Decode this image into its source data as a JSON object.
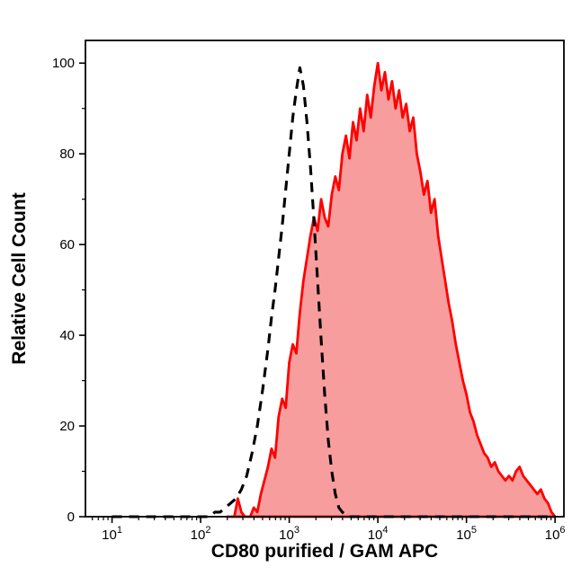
{
  "chart_data": {
    "type": "area",
    "title": "",
    "xlabel": "CD80 purified / GAM APC",
    "ylabel": "Relative Cell Count",
    "x_scale": "log10",
    "xlim_log": [
      0.7,
      6.1
    ],
    "ylim": [
      0,
      105
    ],
    "x_ticks_exponents": [
      1,
      2,
      3,
      4,
      5,
      6
    ],
    "x_tick_base": "10",
    "y_ticks": [
      0,
      20,
      40,
      60,
      80,
      100
    ],
    "y_minor_ticks": [
      10,
      30,
      50,
      70,
      90
    ],
    "grid": false,
    "legend": "none",
    "colors": {
      "frame": "#000000",
      "dashed_curve": "#000000",
      "red_stroke": "#fe0000",
      "red_fill": "#f89d9d",
      "background": "#ffffff"
    },
    "series": [
      {
        "name": "red-filled-sample",
        "style": "filled-solid",
        "stroke": "#fe0000",
        "fill": "#f89d9d",
        "points_log10x_y": [
          [
            2.3,
            0
          ],
          [
            2.38,
            0
          ],
          [
            2.42,
            4
          ],
          [
            2.46,
            1
          ],
          [
            2.5,
            0
          ],
          [
            2.56,
            0
          ],
          [
            2.6,
            2
          ],
          [
            2.64,
            1
          ],
          [
            2.68,
            5
          ],
          [
            2.72,
            8
          ],
          [
            2.76,
            11
          ],
          [
            2.8,
            15
          ],
          [
            2.84,
            13
          ],
          [
            2.88,
            22
          ],
          [
            2.92,
            26
          ],
          [
            2.96,
            24
          ],
          [
            3.0,
            34
          ],
          [
            3.04,
            38
          ],
          [
            3.08,
            36
          ],
          [
            3.12,
            45
          ],
          [
            3.16,
            52
          ],
          [
            3.2,
            57
          ],
          [
            3.24,
            62
          ],
          [
            3.28,
            66
          ],
          [
            3.32,
            63
          ],
          [
            3.36,
            70
          ],
          [
            3.4,
            66
          ],
          [
            3.44,
            64
          ],
          [
            3.48,
            71
          ],
          [
            3.52,
            75
          ],
          [
            3.56,
            72
          ],
          [
            3.6,
            80
          ],
          [
            3.64,
            84
          ],
          [
            3.68,
            79
          ],
          [
            3.72,
            87
          ],
          [
            3.76,
            83
          ],
          [
            3.8,
            90
          ],
          [
            3.84,
            85
          ],
          [
            3.88,
            93
          ],
          [
            3.92,
            88
          ],
          [
            3.96,
            95
          ],
          [
            4.0,
            100
          ],
          [
            4.04,
            94
          ],
          [
            4.08,
            98
          ],
          [
            4.12,
            92
          ],
          [
            4.16,
            96
          ],
          [
            4.2,
            90
          ],
          [
            4.24,
            94
          ],
          [
            4.28,
            88
          ],
          [
            4.32,
            91
          ],
          [
            4.36,
            85
          ],
          [
            4.4,
            88
          ],
          [
            4.44,
            80
          ],
          [
            4.48,
            76
          ],
          [
            4.52,
            71
          ],
          [
            4.56,
            74
          ],
          [
            4.6,
            67
          ],
          [
            4.64,
            70
          ],
          [
            4.68,
            62
          ],
          [
            4.72,
            57
          ],
          [
            4.76,
            52
          ],
          [
            4.8,
            47
          ],
          [
            4.84,
            43
          ],
          [
            4.88,
            38
          ],
          [
            4.92,
            34
          ],
          [
            4.96,
            30
          ],
          [
            5.0,
            27
          ],
          [
            5.04,
            23
          ],
          [
            5.08,
            21
          ],
          [
            5.12,
            18
          ],
          [
            5.16,
            16
          ],
          [
            5.2,
            14
          ],
          [
            5.24,
            13
          ],
          [
            5.28,
            11
          ],
          [
            5.32,
            12
          ],
          [
            5.36,
            10
          ],
          [
            5.4,
            9
          ],
          [
            5.44,
            8
          ],
          [
            5.48,
            9
          ],
          [
            5.52,
            8
          ],
          [
            5.56,
            10
          ],
          [
            5.6,
            11
          ],
          [
            5.64,
            9
          ],
          [
            5.68,
            8
          ],
          [
            5.72,
            7
          ],
          [
            5.76,
            6
          ],
          [
            5.8,
            5
          ],
          [
            5.84,
            6
          ],
          [
            5.88,
            4
          ],
          [
            5.92,
            3
          ],
          [
            5.96,
            1
          ],
          [
            6.0,
            0
          ]
        ]
      },
      {
        "name": "dashed-control",
        "style": "dashed",
        "stroke": "#000000",
        "fill": "none",
        "points_log10x_y": [
          [
            1.0,
            0
          ],
          [
            1.5,
            0
          ],
          [
            2.0,
            0
          ],
          [
            2.1,
            0
          ],
          [
            2.16,
            1
          ],
          [
            2.22,
            1
          ],
          [
            2.28,
            2
          ],
          [
            2.34,
            3
          ],
          [
            2.4,
            4
          ],
          [
            2.46,
            6
          ],
          [
            2.52,
            9
          ],
          [
            2.58,
            14
          ],
          [
            2.64,
            20
          ],
          [
            2.7,
            28
          ],
          [
            2.76,
            37
          ],
          [
            2.8,
            44
          ],
          [
            2.84,
            50
          ],
          [
            2.88,
            57
          ],
          [
            2.92,
            64
          ],
          [
            2.96,
            72
          ],
          [
            3.0,
            80
          ],
          [
            3.04,
            88
          ],
          [
            3.08,
            94
          ],
          [
            3.12,
            99
          ],
          [
            3.16,
            95
          ],
          [
            3.2,
            87
          ],
          [
            3.24,
            77
          ],
          [
            3.28,
            65
          ],
          [
            3.32,
            52
          ],
          [
            3.36,
            39
          ],
          [
            3.4,
            27
          ],
          [
            3.44,
            17
          ],
          [
            3.48,
            10
          ],
          [
            3.52,
            5
          ],
          [
            3.56,
            2
          ],
          [
            3.6,
            1
          ],
          [
            3.66,
            0
          ],
          [
            4.0,
            0
          ],
          [
            4.5,
            0
          ],
          [
            5.0,
            0
          ],
          [
            5.5,
            0
          ],
          [
            6.0,
            0
          ]
        ]
      }
    ]
  }
}
